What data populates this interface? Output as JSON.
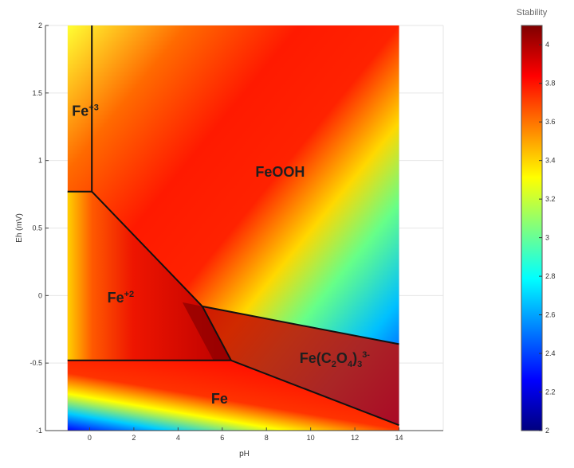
{
  "chart_data": {
    "type": "heatmap",
    "xlabel": "pH",
    "ylabel": "Eh (mV)",
    "xlim": [
      -2,
      16
    ],
    "ylim": [
      -1,
      2
    ],
    "data_xrange": [
      -1,
      14
    ],
    "xticks": [
      "0",
      "2",
      "4",
      "6",
      "8",
      "10",
      "12",
      "14"
    ],
    "xtick_values": [
      0,
      2,
      4,
      6,
      8,
      10,
      12,
      14
    ],
    "yticks": [
      "-1",
      "-0.5",
      "0",
      "0.5",
      "1",
      "1.5",
      "2"
    ],
    "ytick_values": [
      -1,
      -0.5,
      0,
      0.5,
      1,
      1.5,
      2
    ],
    "grid": true,
    "colormap": "jet",
    "colorbar": {
      "title": "Stability",
      "range": [
        2,
        4.1
      ],
      "ticks": [
        "2",
        "2.2",
        "2.4",
        "2.6",
        "2.8",
        "3",
        "3.2",
        "3.4",
        "3.6",
        "3.8",
        "4"
      ],
      "tick_values": [
        2,
        2.2,
        2.4,
        2.6,
        2.8,
        3,
        3.2,
        3.4,
        3.6,
        3.8,
        4
      ]
    },
    "boundaries": [
      {
        "points": [
          [
            0.1,
            2.0
          ],
          [
            0.1,
            0.77
          ]
        ]
      },
      {
        "points": [
          [
            -1,
            0.77
          ],
          [
            0.1,
            0.77
          ]
        ]
      },
      {
        "points": [
          [
            0.1,
            0.77
          ],
          [
            5.1,
            -0.08
          ]
        ]
      },
      {
        "points": [
          [
            5.1,
            -0.08
          ],
          [
            6.4,
            -0.48
          ]
        ]
      },
      {
        "points": [
          [
            -1,
            -0.48
          ],
          [
            6.4,
            -0.48
          ]
        ]
      },
      {
        "points": [
          [
            5.1,
            -0.08
          ],
          [
            14,
            -0.36
          ]
        ]
      },
      {
        "points": [
          [
            6.4,
            -0.48
          ],
          [
            14,
            -0.96
          ]
        ]
      }
    ],
    "regions": [
      {
        "name": "Fe",
        "sup": "+3",
        "x": -0.8,
        "y": 1.33
      },
      {
        "name": "FeOOH",
        "x": 7.5,
        "y": 0.88
      },
      {
        "name": "Fe",
        "sup": "+2",
        "x": 0.8,
        "y": -0.05
      },
      {
        "name": "Fe(C",
        "sub1": "2",
        "mid": "O",
        "sub2": "4",
        "close": ")",
        "sub3": "3",
        "sup": "3-",
        "x": 9.5,
        "y": -0.5
      },
      {
        "name": "Fe",
        "x": 5.5,
        "y": -0.8
      }
    ]
  }
}
